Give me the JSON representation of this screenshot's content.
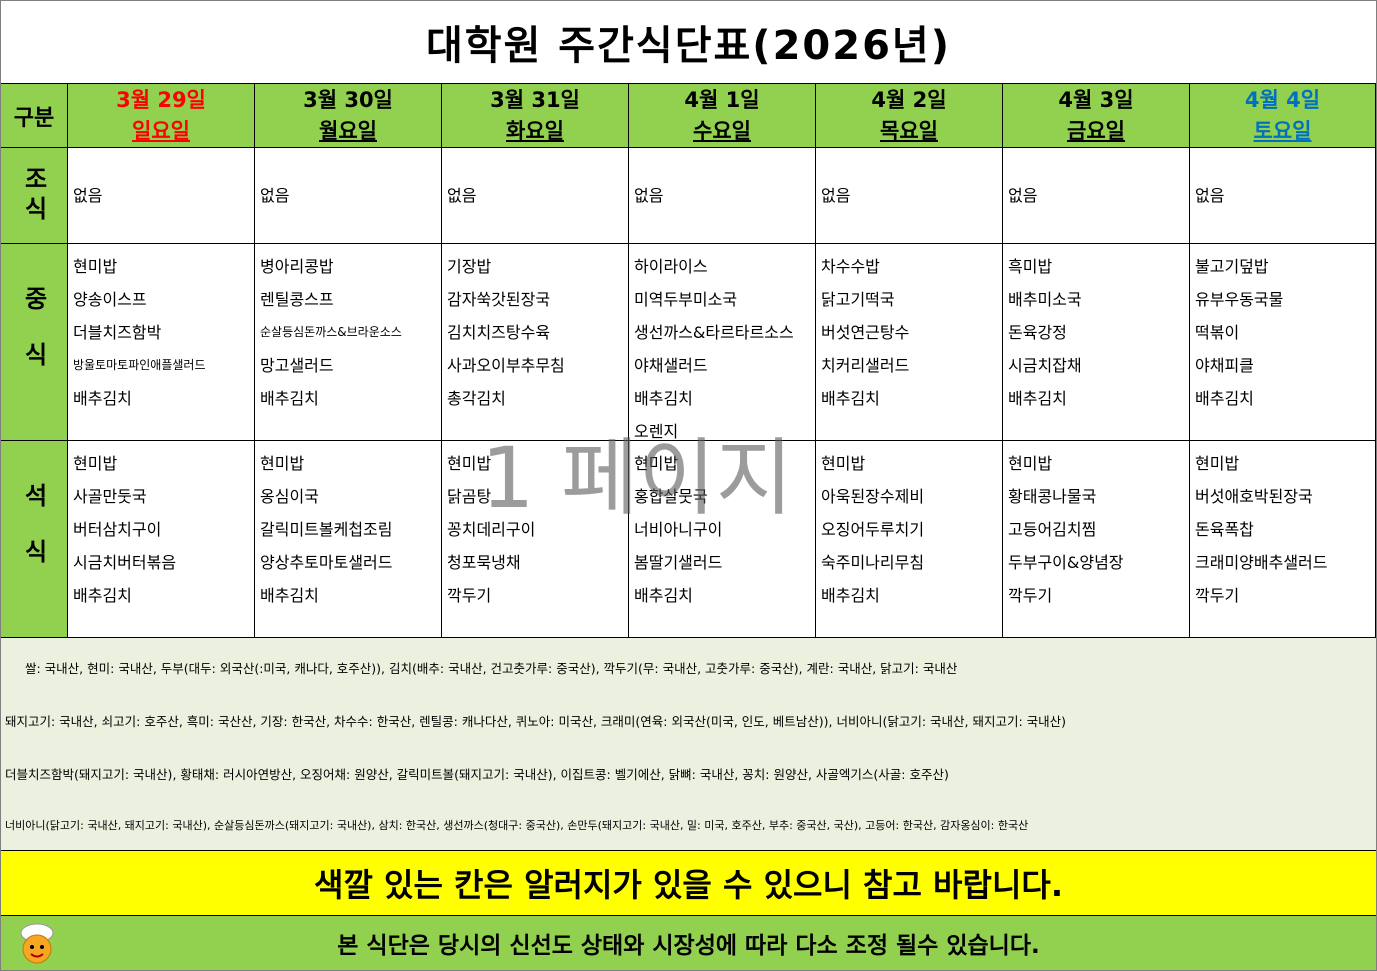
{
  "title": "대학원 주간식단표(2026년)",
  "table": {
    "corner": "구분",
    "days": [
      {
        "date": "3월 29일",
        "weekday": "일요일",
        "color": "#ff0000"
      },
      {
        "date": "3월 30일",
        "weekday": "월요일",
        "color": "#000000"
      },
      {
        "date": "3월 31일",
        "weekday": "화요일",
        "color": "#000000"
      },
      {
        "date": "4월 1일",
        "weekday": "수요일",
        "color": "#000000"
      },
      {
        "date": "4월 2일",
        "weekday": "목요일",
        "color": "#000000"
      },
      {
        "date": "4월 3일",
        "weekday": "금요일",
        "color": "#000000"
      },
      {
        "date": "4월 4일",
        "weekday": "토요일",
        "color": "#0070c0"
      }
    ],
    "meals": [
      {
        "label": "조식",
        "menus": [
          [
            "없음"
          ],
          [
            "없음"
          ],
          [
            "없음"
          ],
          [
            "없음"
          ],
          [
            "없음"
          ],
          [
            "없음"
          ],
          [
            "없음"
          ]
        ]
      },
      {
        "label": "중식",
        "menus": [
          [
            "현미밥",
            "양송이스프",
            "더블치즈함박",
            "방울토마토파인애플샐러드",
            "배추김치"
          ],
          [
            "병아리콩밥",
            "렌틸콩스프",
            "순살등심돈까스&브라운소스",
            "망고샐러드",
            "배추김치"
          ],
          [
            "기장밥",
            "감자쑥갓된장국",
            "김치치즈탕수육",
            "사과오이부추무침",
            "총각김치"
          ],
          [
            "하이라이스",
            "미역두부미소국",
            "생선까스&타르타르소스",
            "야채샐러드",
            "배추김치",
            "오렌지"
          ],
          [
            "차수수밥",
            "닭고기떡국",
            "버섯연근탕수",
            "치커리샐러드",
            "배추김치"
          ],
          [
            "흑미밥",
            "배추미소국",
            "돈육강정",
            "시금치잡채",
            "배추김치"
          ],
          [
            "불고기덮밥",
            "유부우동국물",
            "떡볶이",
            "야채피클",
            "배추김치"
          ]
        ]
      },
      {
        "label": "석식",
        "menus": [
          [
            "현미밥",
            "사골만둣국",
            "버터삼치구이",
            "시금치버터볶음",
            "배추김치"
          ],
          [
            "현미밥",
            "옹심이국",
            "갈릭미트볼케첩조림",
            "양상추토마토샐러드",
            "배추김치"
          ],
          [
            "현미밥",
            "닭곰탕",
            "꽁치데리구이",
            "청포묵냉채",
            "깍두기"
          ],
          [
            "현미밥",
            "홍합살뭇국",
            "너비아니구이",
            "봄딸기샐러드",
            "배추김치"
          ],
          [
            "현미밥",
            "아욱된장수제비",
            "오징어두루치기",
            "숙주미나리무침",
            "배추김치"
          ],
          [
            "현미밥",
            "황태콩나물국",
            "고등어김치찜",
            "두부구이&양념장",
            "깍두기"
          ],
          [
            "현미밥",
            "버섯애호박된장국",
            "돈육폭찹",
            "크래미양배추샐러드",
            "깍두기"
          ]
        ]
      }
    ]
  },
  "origin_notes": [
    "쌀: 국내산,  현미: 국내산,  두부(대두: 외국산(:미국, 캐나다, 호주산)), 김치(배추: 국내산, 건고춧가루: 중국산), 깍두기(무: 국내산, 고춧가루: 중국산), 계란: 국내산, 닭고기: 국내산",
    "돼지고기: 국내산, 쇠고기: 호주산, 흑미: 국산산, 기장: 한국산, 차수수: 한국산, 렌틸콩: 캐나다산, 퀴노아: 미국산, 크래미(연육: 외국산(미국, 인도, 베트남산)), 너비아니(닭고기: 국내산, 돼지고기: 국내산)",
    "더블치즈함박(돼지고기: 국내산), 황태채: 러시아연방산, 오징어채: 원양산, 갈릭미트볼(돼지고기: 국내산), 이집트콩: 벨기에산, 닭뼈: 국내산, 꽁치: 원양산, 사골엑기스(사골: 호주산)",
    "너비아니(닭고기: 국내산, 돼지고기: 국내산), 순살등심돈까스(돼지고기: 국내산), 삼치: 한국산, 생선까스(청대구: 중국산), 손만두(돼지고기: 국내산, 밀: 미국, 호주산, 부추: 중국산, 국산), 고등어: 한국산, 감자옹심이: 한국산"
  ],
  "notice": "색깔 있는 칸은  알러지가 있을 수 있으니 참고 바랍니다.",
  "footer": "본 식단은 당시의 신선도 상태와 시장성에 따라 다소 조정 될수 있습니다.",
  "watermark": "1 페이지"
}
